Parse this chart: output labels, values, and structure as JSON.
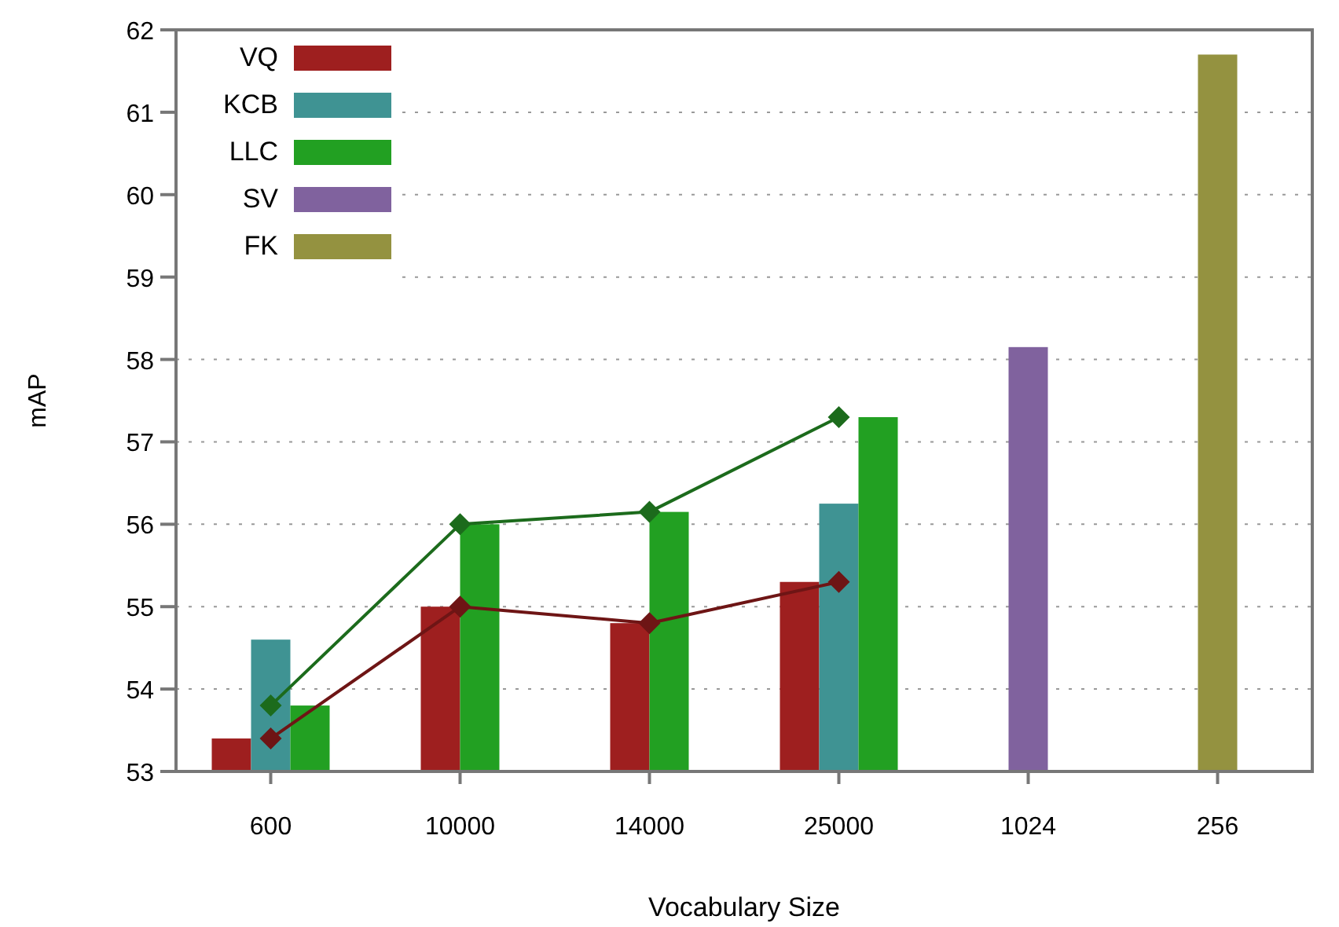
{
  "chart_data": {
    "type": "bar",
    "xlabel": "Vocabulary Size",
    "ylabel": "mAP",
    "categories": [
      "600",
      "10000",
      "14000",
      "25000",
      "1024",
      "256"
    ],
    "series": [
      {
        "name": "VQ",
        "color": "#9e1f1f",
        "values": [
          53.4,
          55.0,
          54.8,
          55.3,
          null,
          null
        ]
      },
      {
        "type": "line",
        "color": "#6e1515",
        "marker": "diamond",
        "values": [
          53.4,
          55.0,
          54.8,
          55.3,
          null,
          null
        ]
      },
      {
        "name": "KCB",
        "color": "#3f9393",
        "values": [
          54.6,
          null,
          null,
          56.25,
          null,
          null
        ]
      },
      {
        "name": "LLC",
        "color": "#22a022",
        "values": [
          53.8,
          56.0,
          56.15,
          57.3,
          null,
          null
        ]
      },
      {
        "type": "line",
        "color": "#1c6b1c",
        "marker": "diamond",
        "values": [
          53.8,
          56.0,
          56.15,
          57.3,
          null,
          null
        ]
      },
      {
        "name": "SV",
        "color": "#80629e",
        "values": [
          null,
          null,
          null,
          null,
          58.15,
          null
        ]
      },
      {
        "name": "FK",
        "color": "#949240",
        "values": [
          null,
          null,
          null,
          null,
          null,
          61.7
        ]
      }
    ],
    "ylim": [
      53,
      62
    ],
    "yticks": [
      53,
      54,
      55,
      56,
      57,
      58,
      59,
      60,
      61,
      62
    ],
    "grid": "y",
    "legend": "top left"
  }
}
